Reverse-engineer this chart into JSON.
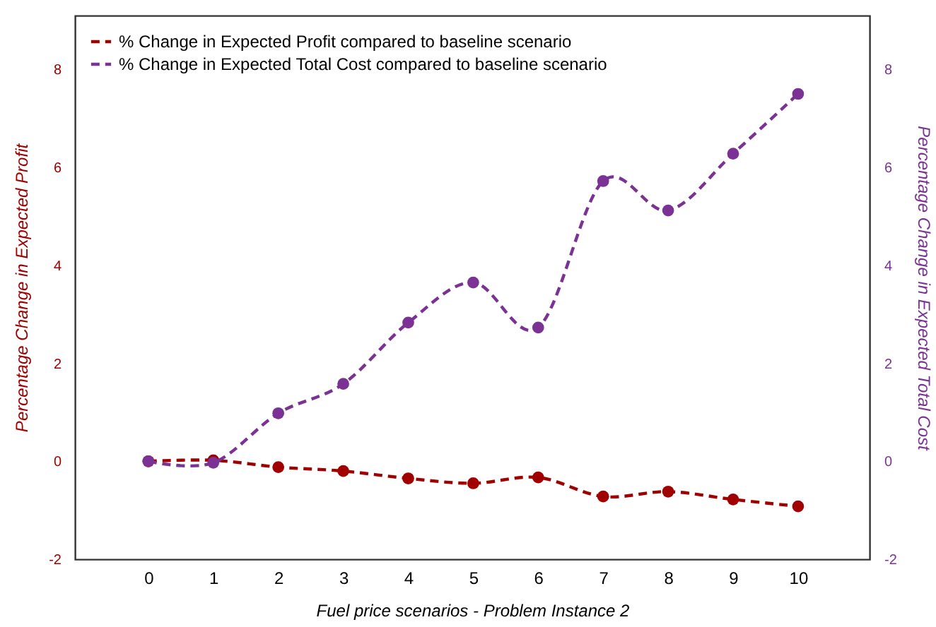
{
  "chart_data": {
    "type": "line",
    "xlabel": "Fuel price scenarios - Problem Instance 2",
    "ylabel": "Percentage Change in Expected Profit",
    "y2label": "Percentage Change in Expected Total Cost",
    "x": [
      0,
      1,
      2,
      3,
      4,
      5,
      6,
      7,
      8,
      9,
      10
    ],
    "xlim": [
      -1.13,
      11.1
    ],
    "xticks": [
      0,
      1,
      2,
      3,
      4,
      5,
      6,
      7,
      8,
      9,
      10
    ],
    "ylim": [
      -2,
      9.1
    ],
    "yticks": [
      -2,
      0,
      2,
      4,
      6,
      8
    ],
    "y2lim": [
      -2,
      9.1
    ],
    "y2ticks": [
      -2,
      0,
      2,
      4,
      6,
      8
    ],
    "marker": "circle",
    "line_style": "dashed",
    "legend": "top left",
    "series": [
      {
        "name": "% Change in Expected Profit compared to baseline scenario",
        "color": "#a00000",
        "values": [
          0,
          0.02,
          -0.12,
          -0.2,
          -0.35,
          -0.45,
          -0.33,
          -0.72,
          -0.62,
          -0.78,
          -0.92
        ]
      },
      {
        "name": "% Change in Expected Total Cost compared to baseline scenario",
        "color": "#7b3294",
        "axis": "y2",
        "values": [
          0,
          -0.03,
          0.98,
          1.58,
          2.83,
          3.65,
          2.73,
          5.72,
          5.12,
          6.28,
          7.5
        ]
      }
    ]
  }
}
